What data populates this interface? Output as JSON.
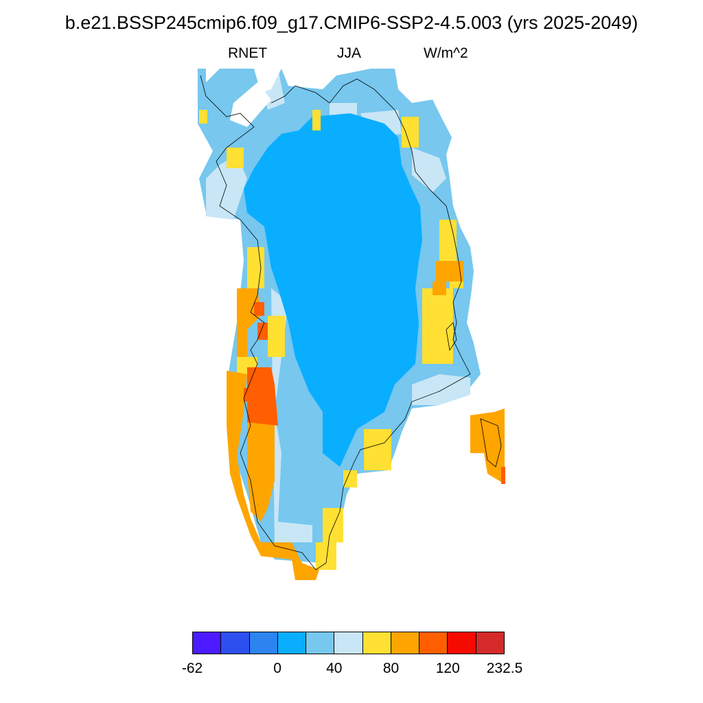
{
  "header": {
    "title": "b.e21.BSSP245cmip6.f09_g17.CMIP6-SSP2-4.5.003 (yrs 2025-2049)",
    "left_label": "RNET",
    "center_label": "JJA",
    "right_label": "W/m^2"
  },
  "colorbar": {
    "colors": [
      "#4b1aff",
      "#2d4ff0",
      "#2b84f0",
      "#0aaeff",
      "#77c7ee",
      "#c8e6f6",
      "#ffe033",
      "#ffa500",
      "#ff5f00",
      "#f50a00",
      "#d42a2a"
    ],
    "labels": [
      {
        "text": "-62",
        "at_boundary": 0
      },
      {
        "text": "0",
        "at_boundary": 3
      },
      {
        "text": "40",
        "at_boundary": 5
      },
      {
        "text": "80",
        "at_boundary": 7
      },
      {
        "text": "120",
        "at_boundary": 9
      },
      {
        "text": "232.5",
        "at_boundary": 11
      }
    ]
  },
  "map": {
    "region": "Greenland",
    "variable": "RNET",
    "season": "JJA",
    "units": "W/m^2"
  }
}
